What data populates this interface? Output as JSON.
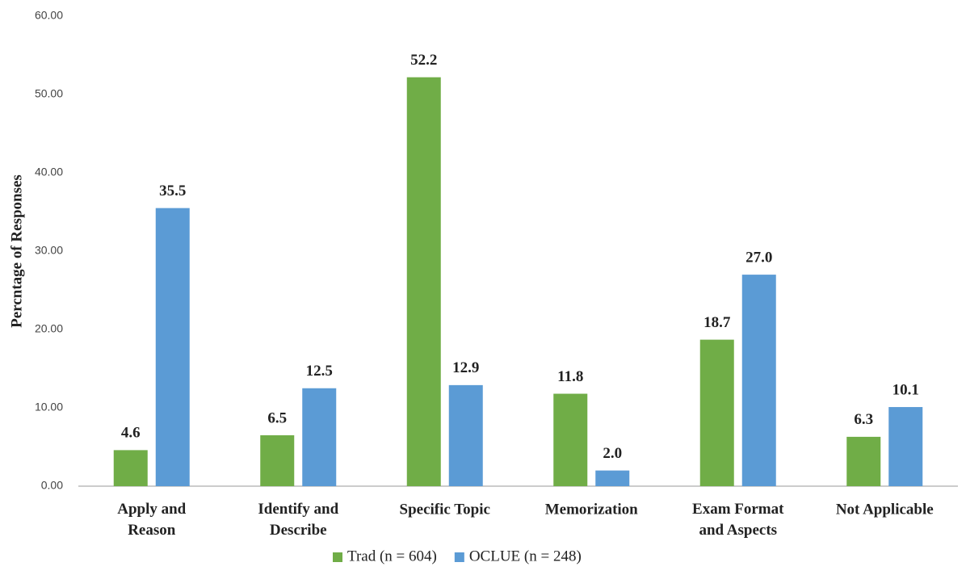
{
  "chart_data": {
    "type": "bar",
    "y_label": "Percntage of Responses",
    "categories": [
      "Apply and Reason",
      "Identify and Describe",
      "Specific Topic",
      "Memorization",
      "Exam Format and Aspects",
      "Not Applicable"
    ],
    "series": [
      {
        "name": "Trad (n = 604)",
        "color": "#70ad47",
        "values": [
          4.6,
          6.5,
          52.2,
          11.8,
          18.7,
          6.3
        ],
        "value_labels": [
          "4.6",
          "6.5",
          "52.2",
          "11.8",
          "18.7",
          "6.3"
        ]
      },
      {
        "name": "OCLUE (n = 248)",
        "color": "#5b9bd5",
        "values": [
          35.5,
          12.5,
          12.9,
          2.0,
          27.0,
          10.1
        ],
        "value_labels": [
          "35.5",
          "12.5",
          "12.9",
          "2.0",
          "27.0",
          "10.1"
        ]
      }
    ],
    "ylim": [
      0,
      60
    ],
    "yticks": [
      {
        "value": 0,
        "label": "0.00"
      },
      {
        "value": 10,
        "label": "10.00"
      },
      {
        "value": 20,
        "label": "20.00"
      },
      {
        "value": 30,
        "label": "30.00"
      },
      {
        "value": 40,
        "label": "40.00"
      },
      {
        "value": 50,
        "label": "50.00"
      },
      {
        "value": 60,
        "label": "60.00"
      }
    ],
    "grid": false,
    "legend": "bottom"
  }
}
